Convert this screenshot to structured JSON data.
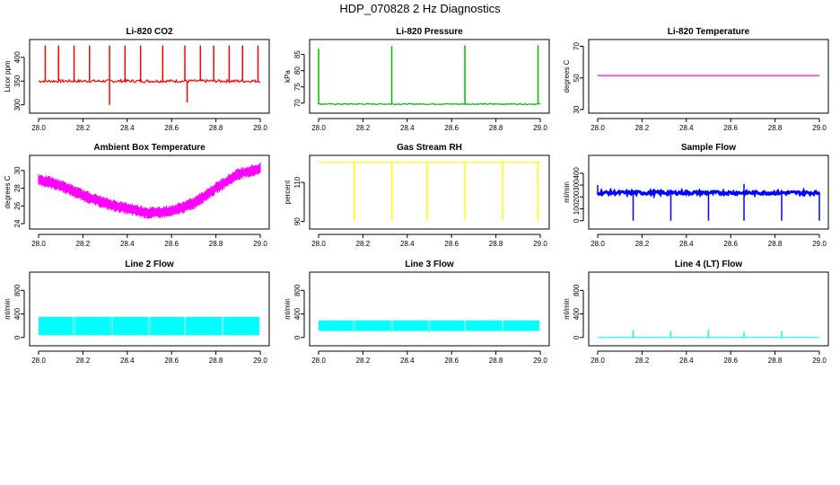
{
  "page": {
    "title": "HDP_070828  2 Hz Diagnostics"
  },
  "chart_data": [
    {
      "type": "line",
      "title": "Li-820 CO2",
      "xlabel": "",
      "ylabel": "Licor ppm",
      "color": "#ff0000",
      "xlim": [
        28.0,
        29.0
      ],
      "ylim": [
        290,
        430
      ],
      "xticks": [
        "28.0",
        "28.2",
        "28.4",
        "28.6",
        "28.8",
        "29.0"
      ],
      "yticks": [
        300,
        350,
        400
      ],
      "series": [
        {
          "baseline": 350,
          "noise": 3,
          "spikes_up": [
            [
              28.03,
              425
            ],
            [
              28.09,
              425
            ],
            [
              28.16,
              425
            ],
            [
              28.23,
              425
            ],
            [
              28.32,
              425
            ],
            [
              28.39,
              425
            ],
            [
              28.46,
              425
            ],
            [
              28.56,
              425
            ],
            [
              28.66,
              425
            ],
            [
              28.73,
              425
            ],
            [
              28.79,
              425
            ],
            [
              28.86,
              425
            ],
            [
              28.92,
              425
            ],
            [
              28.99,
              425
            ]
          ],
          "spikes_down": [
            [
              28.32,
              300
            ],
            [
              28.67,
              305
            ]
          ]
        }
      ]
    },
    {
      "type": "line",
      "title": "Li-820 Pressure",
      "xlabel": "",
      "ylabel": "kPa",
      "color": "#00bb00",
      "xlim": [
        28.0,
        29.0
      ],
      "ylim": [
        68,
        88.5
      ],
      "xticks": [
        "28.0",
        "28.2",
        "28.4",
        "28.6",
        "28.8",
        "29.0"
      ],
      "yticks": [
        70,
        75,
        80,
        85
      ],
      "series": [
        {
          "baseline": 69.7,
          "noise": 0.15,
          "spikes_up": [
            [
              28.0,
              86.8
            ],
            [
              28.33,
              87.6
            ],
            [
              28.66,
              87.8
            ],
            [
              28.99,
              87.8
            ]
          ],
          "spikes_down": []
        }
      ]
    },
    {
      "type": "line",
      "title": "Li-820 Temperature",
      "xlabel": "",
      "ylabel": "degrees C",
      "color": "#ff00ff",
      "xlim": [
        28.0,
        29.0
      ],
      "ylim": [
        30,
        72
      ],
      "xticks": [
        "28.0",
        "28.2",
        "28.4",
        "28.6",
        "28.8",
        "29.0"
      ],
      "yticks": [
        30,
        50,
        70
      ],
      "series": [
        {
          "baseline": 51.5,
          "noise": 0,
          "spikes_up": [],
          "spikes_down": []
        }
      ]
    },
    {
      "type": "line",
      "title": "Ambient Box Temperature",
      "xlabel": "",
      "ylabel": "degrees C",
      "color": "#ff00ff",
      "xlim": [
        28.0,
        29.0
      ],
      "ylim": [
        23.8,
        31.3
      ],
      "xticks": [
        "28.0",
        "28.2",
        "28.4",
        "28.6",
        "28.8",
        "29.0"
      ],
      "yticks": [
        24,
        26,
        28,
        30
      ],
      "series": [
        {
          "band": 1.1,
          "curve": [
            [
              28.0,
              29.0
            ],
            [
              28.1,
              28.3
            ],
            [
              28.2,
              27.2
            ],
            [
              28.3,
              26.3
            ],
            [
              28.4,
              25.7
            ],
            [
              28.5,
              25.2
            ],
            [
              28.6,
              25.4
            ],
            [
              28.7,
              26.3
            ],
            [
              28.8,
              28.0
            ],
            [
              28.9,
              29.6
            ],
            [
              29.0,
              30.2
            ]
          ],
          "spikes_up": [],
          "spikes_down": []
        }
      ]
    },
    {
      "type": "line",
      "title": "Gas Stream RH",
      "xlabel": "",
      "ylabel": "percent",
      "color": "#ffff00",
      "xlim": [
        28.0,
        29.0
      ],
      "ylim": [
        88,
        122
      ],
      "xticks": [
        "28.0",
        "28.2",
        "28.4",
        "28.6",
        "28.8",
        "29.0"
      ],
      "yticks": [
        90,
        110
      ],
      "series": [
        {
          "baseline": 120.5,
          "noise": 0,
          "spikes_up": [],
          "spikes_down": [
            [
              28.16,
              90.5
            ],
            [
              28.33,
              90.5
            ],
            [
              28.49,
              90.5
            ],
            [
              28.66,
              90.5
            ],
            [
              28.83,
              90.5
            ],
            [
              28.99,
              90.5
            ]
          ]
        }
      ]
    },
    {
      "type": "line",
      "title": "Sample Flow",
      "xlabel": "",
      "ylabel": "ml/min",
      "color": "#0000ff",
      "xlim": [
        28.0,
        29.0
      ],
      "ylim": [
        -40,
        520
      ],
      "xticks": [
        "28.0",
        "28.2",
        "28.4",
        "28.6",
        "28.8",
        "29.0"
      ],
      "yticks": [
        0,
        100,
        200,
        300,
        400
      ],
      "series": [
        {
          "baseline": 235,
          "noise": 14,
          "spikes_up": [
            [
              28.0,
              300
            ],
            [
              28.66,
              310
            ]
          ],
          "spikes_down": [
            [
              28.16,
              0
            ],
            [
              28.33,
              0
            ],
            [
              28.5,
              0
            ],
            [
              28.66,
              0
            ],
            [
              28.83,
              0
            ],
            [
              29.0,
              0
            ]
          ]
        }
      ]
    },
    {
      "type": "line",
      "title": "Line 2 Flow",
      "xlabel": "",
      "ylabel": "ml/min",
      "color": "#00ffff",
      "xlim": [
        28.0,
        29.0
      ],
      "ylim": [
        -80,
        1050
      ],
      "xticks": [
        "28.0",
        "28.2",
        "28.4",
        "28.6",
        "28.8",
        "29.0"
      ],
      "yticks": [
        0,
        400,
        800
      ],
      "series": [
        {
          "band_low": 40,
          "band_high": 350,
          "gaps": [
            28.16,
            28.33,
            28.5,
            28.66,
            28.83
          ],
          "spikes_up": [],
          "spikes_down": []
        }
      ]
    },
    {
      "type": "line",
      "title": "Line 3 Flow",
      "xlabel": "",
      "ylabel": "ml/min",
      "color": "#00ffff",
      "xlim": [
        28.0,
        29.0
      ],
      "ylim": [
        -80,
        1050
      ],
      "xticks": [
        "28.0",
        "28.2",
        "28.4",
        "28.6",
        "28.8",
        "29.0"
      ],
      "yticks": [
        0,
        400,
        800
      ],
      "series": [
        {
          "band_low": 110,
          "band_high": 290,
          "gaps": [
            28.16,
            28.33,
            28.5,
            28.66,
            28.83
          ],
          "spikes_up": [],
          "spikes_down": []
        }
      ]
    },
    {
      "type": "line",
      "title": "Line 4 (LT) Flow",
      "xlabel": "",
      "ylabel": "ml/min",
      "color": "#00ffff",
      "xlim": [
        28.0,
        29.0
      ],
      "ylim": [
        -80,
        1050
      ],
      "xticks": [
        "28.0",
        "28.2",
        "28.4",
        "28.6",
        "28.8",
        "29.0"
      ],
      "yticks": [
        0,
        400,
        800
      ],
      "series": [
        {
          "baseline": 0,
          "noise": 0,
          "spikes_up": [
            [
              28.16,
              130
            ],
            [
              28.33,
              110
            ],
            [
              28.5,
              130
            ],
            [
              28.66,
              100
            ],
            [
              28.83,
              110
            ]
          ],
          "spikes_down": []
        }
      ]
    }
  ]
}
